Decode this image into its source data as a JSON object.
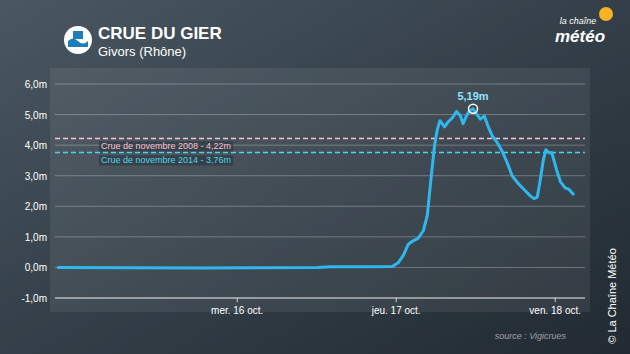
{
  "chart_data": {
    "type": "line",
    "title": "CRUE DU GIER",
    "subtitle": "Givors (Rhône)",
    "source": "source : Vigicrues",
    "credit": "© La Chaîne Météo",
    "brand": [
      "la chaîne",
      "météo"
    ],
    "x": [
      -3,
      18.4,
      36.2,
      38,
      44,
      47.4,
      48.3,
      49.1,
      49.8,
      50.4,
      51.3,
      52.1,
      52.7,
      53.3,
      53.8,
      54.2,
      54.6,
      55.3,
      55.8,
      56.5,
      57.1,
      57.7,
      58.1,
      58.6,
      59,
      59.6,
      60.2,
      60.7,
      61.3,
      61.9,
      62.5,
      63.2,
      64,
      64.8,
      65.5,
      66.4,
      67.3,
      68.2,
      68.8,
      69.3,
      69.7,
      70.2,
      70.6,
      71.1,
      71.5,
      72.2,
      72.8,
      73.5,
      74.1,
      74.7
    ],
    "values": [
      0,
      -0.02,
      0,
      0.02,
      0.02,
      0.03,
      0.15,
      0.4,
      0.75,
      0.85,
      0.95,
      1.2,
      1.7,
      3.0,
      4.0,
      4.5,
      4.8,
      4.6,
      4.75,
      4.9,
      5.1,
      4.95,
      4.7,
      4.95,
      5.1,
      5.19,
      5.0,
      4.85,
      4.95,
      4.6,
      4.3,
      4.1,
      3.8,
      3.4,
      3.0,
      2.75,
      2.55,
      2.35,
      2.25,
      2.3,
      2.8,
      3.5,
      3.85,
      3.75,
      3.75,
      3.2,
      2.8,
      2.6,
      2.55,
      2.4
    ],
    "color": "#2fb8f0",
    "xlim": [
      -3.5,
      76.5
    ],
    "xticks": [
      {
        "value": 24,
        "label": "mer. 16 oct."
      },
      {
        "value": 48,
        "label": "jeu. 17 oct."
      },
      {
        "value": 72,
        "label": "ven. 18 oct."
      }
    ],
    "ylim": [
      -1,
      6
    ],
    "yticks": [
      {
        "value": -1,
        "label": "-1,0m"
      },
      {
        "value": 0,
        "label": "0,0m"
      },
      {
        "value": 1,
        "label": "1,0m"
      },
      {
        "value": 2,
        "label": "2,0m"
      },
      {
        "value": 3,
        "label": "3,0m"
      },
      {
        "value": 4,
        "label": "4,0m"
      },
      {
        "value": 5,
        "label": "5,0m"
      },
      {
        "value": 6,
        "label": "6,0m"
      }
    ],
    "grid": true,
    "reference_lines": [
      {
        "label": "Crue de novembre 2008 - 4,22m",
        "value": 4.22,
        "color": "#f7c3cf"
      },
      {
        "label": "Crue de novembre 2014 - 3,76m",
        "value": 3.76,
        "color": "#4fd6e6"
      }
    ],
    "annotations": [
      {
        "label": "5,19m",
        "x": 59.6,
        "y": 5.19
      }
    ]
  }
}
